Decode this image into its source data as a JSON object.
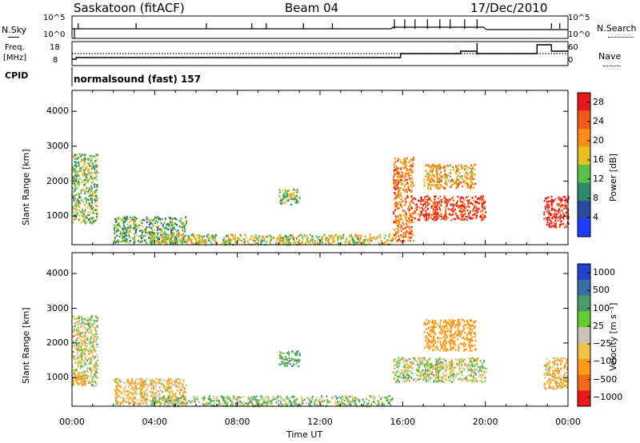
{
  "header": {
    "station": "Saskatoon (fitACF)",
    "beam": "Beam 04",
    "date": "17/Dec/2010"
  },
  "colors": {
    "power_scale": [
      "#1f3bff",
      "#2c4aa0",
      "#2f8a6a",
      "#5bbf4a",
      "#e5c020",
      "#ff8c1a",
      "#f05a1a",
      "#e61a1a"
    ],
    "velocity_scale": [
      "#2244cc",
      "#3a6ea8",
      "#4a9a6a",
      "#66cc33",
      "#c8c4b8",
      "#f2c24a",
      "#ff9a1a",
      "#f06a1a",
      "#e61a1a"
    ]
  },
  "top_panel": {
    "left_label": "N.Sky",
    "left_ticks": [
      "10^5",
      "10^0"
    ],
    "right_label": "N.Search",
    "right_ticks": [
      "10^5",
      "10^0"
    ]
  },
  "freq_panel": {
    "left_label_1": "Freq.",
    "left_label_2": "[MHz]",
    "left_ticks": [
      "18",
      "8"
    ],
    "right_label": "Nave",
    "right_ticks": [
      "60",
      "0"
    ],
    "cpid_label": "CPID",
    "mode_label": "normalsound (fast) 157"
  },
  "chart_data": [
    {
      "type": "heatmap",
      "title": "",
      "ylabel": "Slant Range [km]",
      "xlabel": "",
      "colorbar_label": "Power [dB]",
      "ylim": [
        180,
        4600
      ],
      "y_ticks": [
        "1000",
        "2000",
        "3000",
        "4000"
      ],
      "colorbar_ticks": [
        "4",
        "8",
        "12",
        "16",
        "20",
        "24",
        "28"
      ],
      "colorbar_range": [
        0,
        30
      ],
      "regions": [
        {
          "t_start": 0.0,
          "t_end": 1.2,
          "r_min": 800,
          "r_max": 2800,
          "power": 14
        },
        {
          "t_start": 2.0,
          "t_end": 5.5,
          "r_min": 250,
          "r_max": 1000,
          "power": 12
        },
        {
          "t_start": 3.8,
          "t_end": 15.5,
          "r_min": 200,
          "r_max": 500,
          "power": 16
        },
        {
          "t_start": 10.0,
          "t_end": 11.0,
          "r_min": 1350,
          "r_max": 1800,
          "power": 14
        },
        {
          "t_start": 15.5,
          "t_end": 16.5,
          "r_min": 300,
          "r_max": 2700,
          "power": 22
        },
        {
          "t_start": 17.0,
          "t_end": 19.5,
          "r_min": 1800,
          "r_max": 2500,
          "power": 20
        },
        {
          "t_start": 16.5,
          "t_end": 20.0,
          "r_min": 900,
          "r_max": 1600,
          "power": 26
        },
        {
          "t_start": 22.8,
          "t_end": 24.0,
          "r_min": 700,
          "r_max": 1600,
          "power": 28
        }
      ]
    },
    {
      "type": "heatmap",
      "title": "",
      "ylabel": "Slant Range [km]",
      "xlabel": "Time UT",
      "colorbar_label": "Velocity [m s⁻¹]",
      "ylim": [
        180,
        4600
      ],
      "y_ticks": [
        "1000",
        "2000",
        "3000",
        "4000"
      ],
      "colorbar_ticks": [
        "1000",
        "500",
        "100",
        "25",
        "−25",
        "−100",
        "−500",
        "−1000"
      ],
      "x_ticks": [
        "00:00",
        "04:00",
        "08:00",
        "12:00",
        "16:00",
        "20:00",
        "00:00"
      ],
      "xlim": [
        0,
        24
      ],
      "regions": [
        {
          "t_start": 0.0,
          "t_end": 1.2,
          "r_min": 800,
          "r_max": 2800,
          "velocity": 0
        },
        {
          "t_start": 0.0,
          "t_end": 0.8,
          "r_min": 800,
          "r_max": 1100,
          "velocity": -150
        },
        {
          "t_start": 2.0,
          "t_end": 5.5,
          "r_min": 250,
          "r_max": 1000,
          "velocity": -100
        },
        {
          "t_start": 3.8,
          "t_end": 15.5,
          "r_min": 200,
          "r_max": 500,
          "velocity": 60
        },
        {
          "t_start": 10.0,
          "t_end": 11.0,
          "r_min": 1350,
          "r_max": 1800,
          "velocity": 150
        },
        {
          "t_start": 15.5,
          "t_end": 20.0,
          "r_min": 900,
          "r_max": 1600,
          "velocity": 0
        },
        {
          "t_start": 17.0,
          "t_end": 19.5,
          "r_min": 1800,
          "r_max": 2700,
          "velocity": -250
        },
        {
          "t_start": 22.8,
          "t_end": 24.0,
          "r_min": 700,
          "r_max": 1600,
          "velocity": -100
        }
      ]
    }
  ]
}
